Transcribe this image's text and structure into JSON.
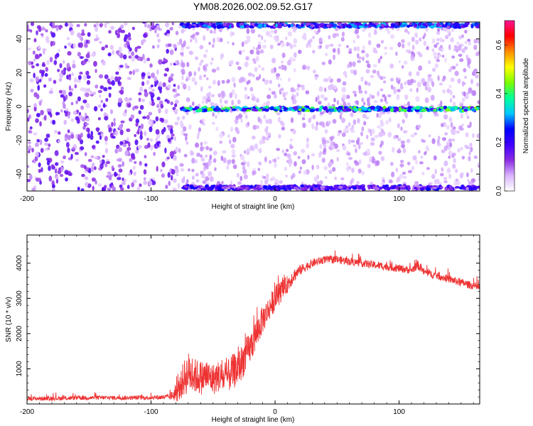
{
  "title": "YM08.2026.002.09.52.G17",
  "chart_data": [
    {
      "type": "heatmap",
      "xlabel": "Height of straight line (km)",
      "ylabel": "Frequency (Hz)",
      "xlim": [
        -200,
        165
      ],
      "ylim": [
        -50,
        50
      ],
      "xticks": [
        -200,
        -100,
        0,
        100
      ],
      "yticks": [
        -40,
        -20,
        0,
        20,
        40
      ],
      "colorbar": {
        "label": "Normalized spectral amplitude",
        "range": [
          0,
          0.7
        ],
        "ticks": [
          0.0,
          0.2,
          0.4,
          0.6
        ],
        "colors": [
          "#ffffff",
          "#d9b3ff",
          "#8a2be2",
          "#3f00ff",
          "#0000ff",
          "#00c8ff",
          "#00ff9c",
          "#7cfc00",
          "#ffff00",
          "#ff8c00",
          "#ff0000",
          "#ff1493"
        ]
      },
      "features": [
        {
          "name": "",
          "x_range": [
            -75,
            165
          ],
          "frequency": -1.5,
          "amplitude": 0.35
        },
        {
          "name": "",
          "x_range": [
            -75,
            165
          ],
          "frequency": 48,
          "amplitude": 0.25
        },
        {
          "name": "",
          "x_range": [
            -75,
            165
          ],
          "frequency": -48,
          "amplitude": 0.2
        },
        {
          "x_range": [
            -200,
            -80
          ],
          "background_amplitude": 0.12
        },
        {
          "x_range": [
            -80,
            165
          ],
          "background_amplitude": 0.06
        }
      ],
      "grid": false
    },
    {
      "type": "line",
      "xlabel": "Height of straight line (km)",
      "ylabel": "SNR (10 * v/v)",
      "xlim": [
        -200,
        165
      ],
      "ylim": [
        0,
        4800
      ],
      "xticks": [
        -200,
        -100,
        0,
        100
      ],
      "yticks": [
        1000,
        2000,
        3000,
        4000
      ],
      "color": "#ee3333",
      "grid": false,
      "series": [
        {
          "x": [
            -200,
            -180,
            -160,
            -140,
            -120,
            -100,
            -85,
            -78,
            -74,
            -70,
            -65,
            -60,
            -55,
            -50,
            -45,
            -40,
            -35,
            -30,
            -25,
            -20,
            -15,
            -10,
            -5,
            0,
            5,
            10,
            15,
            20,
            25,
            30,
            35,
            40,
            50,
            60,
            70,
            80,
            90,
            100,
            110,
            115,
            120,
            130,
            140,
            150,
            160,
            165
          ],
          "values": [
            150,
            160,
            170,
            180,
            175,
            180,
            200,
            350,
            700,
            900,
            800,
            750,
            800,
            700,
            800,
            700,
            900,
            1000,
            1300,
            1600,
            2000,
            2400,
            2700,
            3000,
            3200,
            3400,
            3650,
            3800,
            3900,
            4000,
            4050,
            4100,
            4100,
            4050,
            4000,
            3950,
            3900,
            3850,
            3800,
            3950,
            3750,
            3650,
            3550,
            3450,
            3350,
            3300
          ],
          "noise": [
            60,
            60,
            60,
            60,
            60,
            60,
            80,
            300,
            500,
            600,
            500,
            500,
            450,
            450,
            450,
            450,
            500,
            500,
            500,
            450,
            450,
            400,
            350,
            350,
            300,
            250,
            200,
            150,
            130,
            120,
            120,
            110,
            110,
            110,
            110,
            110,
            110,
            110,
            110,
            130,
            110,
            110,
            110,
            110,
            110,
            110
          ]
        }
      ]
    }
  ]
}
